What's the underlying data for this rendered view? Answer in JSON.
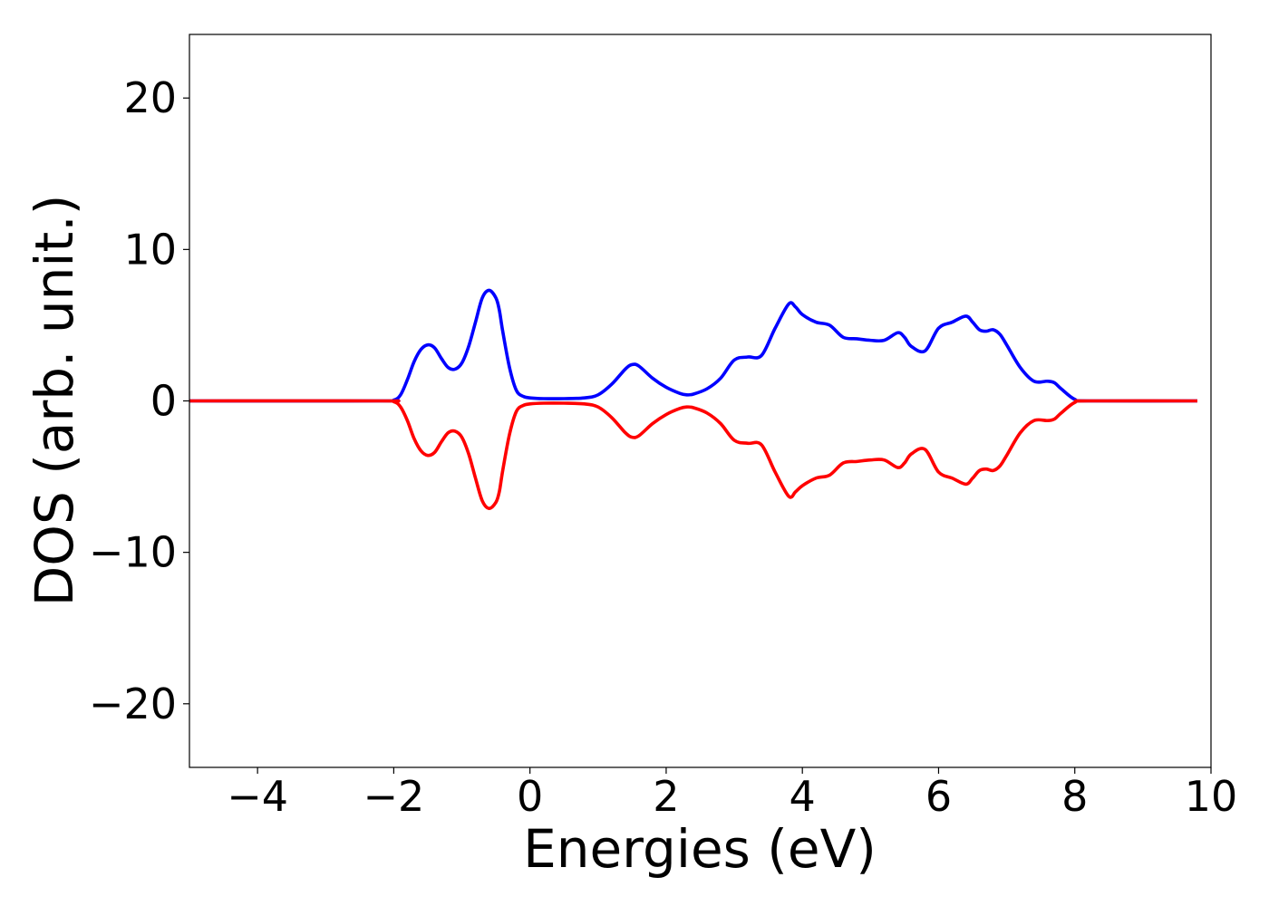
{
  "chart_data": {
    "type": "line",
    "title": "",
    "xlabel": "Energies (eV)",
    "ylabel": "DOS (arb. unit.)",
    "xlim": [
      -5,
      10
    ],
    "ylim": [
      -24.2,
      24.2
    ],
    "xticks": [
      -4,
      -2,
      0,
      2,
      4,
      6,
      8,
      10
    ],
    "xtick_labels": [
      "−4",
      "−2",
      "0",
      "2",
      "4",
      "6",
      "8",
      "10"
    ],
    "yticks": [
      -20,
      -10,
      0,
      10,
      20
    ],
    "ytick_labels": [
      "−20",
      "−10",
      "0",
      "10",
      "20"
    ],
    "grid": false,
    "legend": "none",
    "series": [
      {
        "color": "#0000ff",
        "x": [
          -5,
          -2.2,
          -2.0,
          -1.9,
          -1.8,
          -1.7,
          -1.6,
          -1.5,
          -1.4,
          -1.3,
          -1.2,
          -1.1,
          -1.0,
          -0.9,
          -0.8,
          -0.7,
          -0.6,
          -0.5,
          -0.45,
          -0.4,
          -0.3,
          -0.2,
          -0.1,
          0.0,
          0.2,
          0.5,
          0.8,
          1.0,
          1.2,
          1.4,
          1.5,
          1.6,
          1.8,
          2.0,
          2.2,
          2.3,
          2.4,
          2.6,
          2.8,
          3.0,
          3.2,
          3.4,
          3.6,
          3.8,
          3.9,
          4.0,
          4.2,
          4.4,
          4.6,
          4.8,
          5.0,
          5.2,
          5.4,
          5.5,
          5.6,
          5.8,
          6.0,
          6.2,
          6.4,
          6.5,
          6.6,
          6.7,
          6.8,
          6.9,
          7.0,
          7.2,
          7.4,
          7.6,
          7.7,
          7.8,
          8.0,
          8.2,
          9.8
        ],
        "values": [
          0,
          0,
          0.05,
          0.4,
          1.4,
          2.6,
          3.4,
          3.7,
          3.5,
          2.8,
          2.2,
          2.1,
          2.5,
          3.6,
          5.2,
          6.8,
          7.3,
          6.8,
          6.0,
          4.6,
          2.2,
          0.7,
          0.3,
          0.2,
          0.15,
          0.15,
          0.2,
          0.4,
          1.1,
          2.1,
          2.4,
          2.3,
          1.5,
          0.9,
          0.5,
          0.4,
          0.45,
          0.8,
          1.5,
          2.7,
          2.9,
          3.0,
          4.8,
          6.4,
          6.2,
          5.7,
          5.2,
          5.0,
          4.2,
          4.1,
          4.0,
          4.0,
          4.5,
          4.2,
          3.6,
          3.3,
          4.8,
          5.2,
          5.6,
          5.2,
          4.7,
          4.6,
          4.7,
          4.4,
          3.7,
          2.2,
          1.3,
          1.3,
          1.2,
          0.8,
          0.1,
          0,
          0
        ]
      },
      {
        "color": "#ff0000",
        "x": [
          -5,
          -2.2,
          -2.0,
          -1.9,
          -1.8,
          -1.7,
          -1.6,
          -1.5,
          -1.4,
          -1.3,
          -1.2,
          -1.1,
          -1.0,
          -0.9,
          -0.8,
          -0.7,
          -0.6,
          -0.5,
          -0.45,
          -0.4,
          -0.3,
          -0.2,
          -0.1,
          0.0,
          0.2,
          0.5,
          0.8,
          1.0,
          1.2,
          1.4,
          1.5,
          1.6,
          1.8,
          2.0,
          2.2,
          2.3,
          2.4,
          2.6,
          2.8,
          3.0,
          3.2,
          3.4,
          3.6,
          3.8,
          3.9,
          4.0,
          4.2,
          4.4,
          4.6,
          4.8,
          5.0,
          5.2,
          5.4,
          5.5,
          5.6,
          5.8,
          6.0,
          6.2,
          6.4,
          6.5,
          6.6,
          6.7,
          6.8,
          6.9,
          7.0,
          7.2,
          7.4,
          7.6,
          7.7,
          7.8,
          8.0,
          8.2,
          9.8
        ],
        "values": [
          0,
          0,
          -0.05,
          -0.4,
          -1.3,
          -2.5,
          -3.3,
          -3.6,
          -3.4,
          -2.7,
          -2.1,
          -2.0,
          -2.4,
          -3.5,
          -5.1,
          -6.6,
          -7.1,
          -6.7,
          -6.0,
          -4.6,
          -2.2,
          -0.7,
          -0.3,
          -0.2,
          -0.15,
          -0.15,
          -0.2,
          -0.4,
          -1.1,
          -2.1,
          -2.4,
          -2.3,
          -1.5,
          -0.9,
          -0.5,
          -0.4,
          -0.45,
          -0.8,
          -1.5,
          -2.6,
          -2.8,
          -2.9,
          -4.7,
          -6.3,
          -6.0,
          -5.6,
          -5.1,
          -4.9,
          -4.1,
          -4.0,
          -3.9,
          -3.9,
          -4.4,
          -4.1,
          -3.5,
          -3.2,
          -4.7,
          -5.1,
          -5.5,
          -5.1,
          -4.6,
          -4.5,
          -4.6,
          -4.3,
          -3.6,
          -2.1,
          -1.3,
          -1.3,
          -1.2,
          -0.8,
          -0.1,
          0,
          0
        ]
      }
    ]
  }
}
